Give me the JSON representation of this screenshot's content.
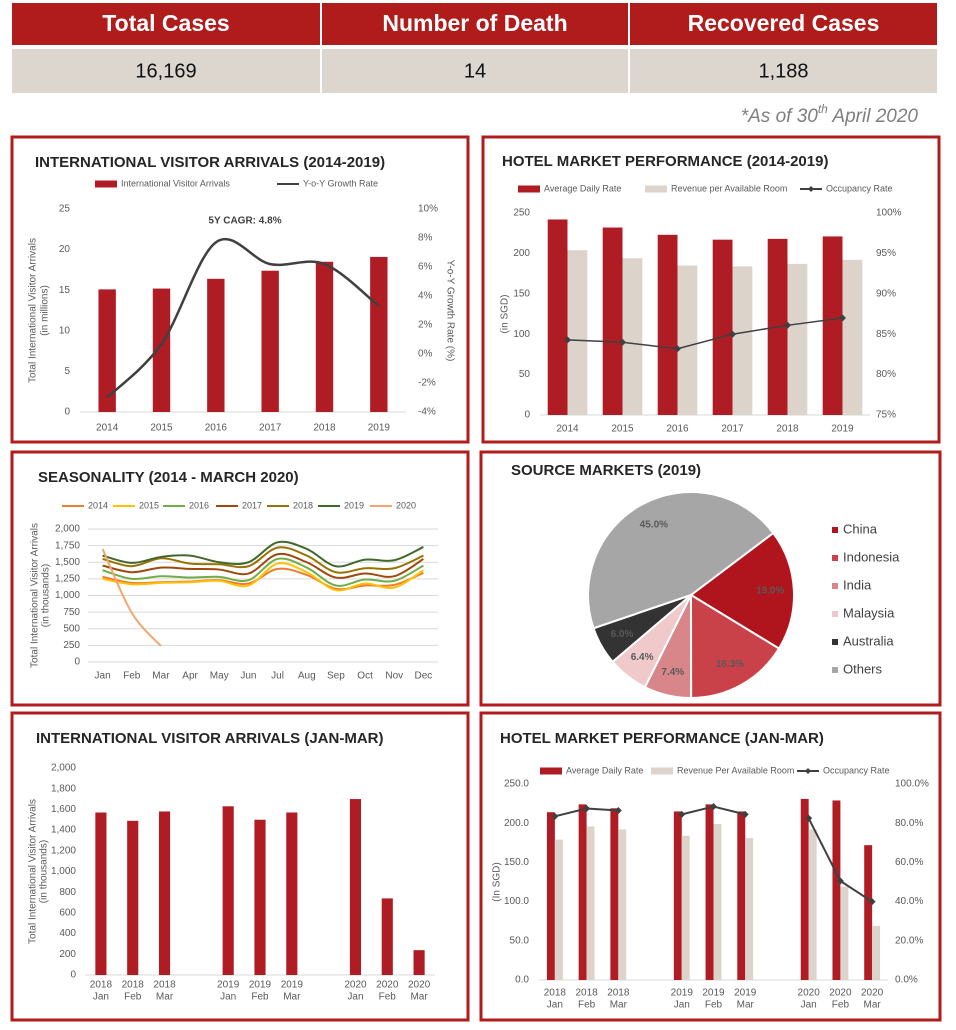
{
  "stats": {
    "headers": [
      "Total Cases",
      "Number of Death",
      "Recovered Cases"
    ],
    "values": [
      "16,169",
      "14",
      "1,188"
    ]
  },
  "note": {
    "prefix": "*As of 30",
    "sup": "th",
    "suffix": " April 2020"
  },
  "chart_data": [
    {
      "type": "bar",
      "title": "INTERNATIONAL VISITOR ARRIVALS (2014-2019)",
      "categories": [
        "2014",
        "2015",
        "2016",
        "2017",
        "2018",
        "2019"
      ],
      "series": [
        {
          "name": "International Visitor Arrivals",
          "type": "bar",
          "color": "#b01c24",
          "values": [
            15.1,
            15.2,
            16.4,
            17.4,
            18.5,
            19.1
          ]
        },
        {
          "name": "Y-o-Y Growth Rate",
          "type": "line",
          "axis": "y2",
          "color": "#404040",
          "values": [
            -3.0,
            0.7,
            7.7,
            6.2,
            6.2,
            3.3
          ]
        }
      ],
      "ylim": [
        0,
        25
      ],
      "yticks": [
        0,
        5,
        10,
        15,
        20,
        25
      ],
      "y2lim": [
        -4,
        10
      ],
      "y2ticks": [
        {
          "value": -4,
          "label": "-4%"
        },
        {
          "value": -2,
          "label": "-2%"
        },
        {
          "value": 0,
          "label": "0%"
        },
        {
          "value": 2,
          "label": "2%"
        },
        {
          "value": 4,
          "label": "4%"
        },
        {
          "value": 6,
          "label": "6%"
        },
        {
          "value": 8,
          "label": "8%"
        },
        {
          "value": 10,
          "label": "10%"
        }
      ],
      "ylabel": [
        "Total International Visitor Arrivals",
        "(in millions)"
      ],
      "y2label": "Y-o-Y Growth Rate (%)",
      "annotation": "5Y CAGR: 4.8%",
      "smooth": true,
      "grid": false
    },
    {
      "type": "bar",
      "title": "HOTEL MARKET PERFORMANCE (2014-2019)",
      "categories": [
        "2014",
        "2015",
        "2016",
        "2017",
        "2018",
        "2019"
      ],
      "series": [
        {
          "name": "Average Daily Rate",
          "type": "bar",
          "color": "#b01c24",
          "values": [
            242,
            232,
            223,
            217,
            218,
            221
          ]
        },
        {
          "name": "Revenue per Available Room",
          "type": "bar",
          "color": "#dcd3ca",
          "values": [
            204,
            194,
            185,
            184,
            187,
            192
          ]
        },
        {
          "name": "Occupancy Rate",
          "type": "line",
          "axis": "y2",
          "color": "#404040",
          "marker": "diamond",
          "values": [
            84.3,
            84.0,
            83.2,
            85.0,
            86.1,
            87.0
          ]
        }
      ],
      "ylim": [
        0,
        250
      ],
      "yticks": [
        0,
        50,
        100,
        150,
        200,
        250
      ],
      "y2lim": [
        75,
        100
      ],
      "y2ticks": [
        {
          "value": 75,
          "label": "75%"
        },
        {
          "value": 80,
          "label": "80%"
        },
        {
          "value": 85,
          "label": "85%"
        },
        {
          "value": 90,
          "label": "90%"
        },
        {
          "value": 95,
          "label": "95%"
        },
        {
          "value": 100,
          "label": "100%"
        }
      ],
      "ylabel": "(in SGD)",
      "smooth": false,
      "grid": false
    },
    {
      "type": "line",
      "title": "SEASONALITY (2014 - MARCH 2020)",
      "categories": [
        "Jan",
        "Feb",
        "Mar",
        "Apr",
        "May",
        "Jun",
        "Jul",
        "Aug",
        "Sep",
        "Oct",
        "Nov",
        "Dec"
      ],
      "series": [
        {
          "name": "2014",
          "color": "#ed7d31",
          "values": [
            1280,
            1190,
            1200,
            1210,
            1230,
            1180,
            1400,
            1310,
            1100,
            1150,
            1160,
            1340
          ]
        },
        {
          "name": "2015",
          "color": "#ffc000",
          "values": [
            1250,
            1170,
            1190,
            1200,
            1220,
            1150,
            1480,
            1350,
            1080,
            1180,
            1120,
            1380
          ]
        },
        {
          "name": "2016",
          "color": "#70ad47",
          "values": [
            1380,
            1250,
            1290,
            1270,
            1280,
            1230,
            1550,
            1420,
            1150,
            1240,
            1220,
            1450
          ]
        },
        {
          "name": "2017",
          "color": "#9e480e",
          "values": [
            1450,
            1350,
            1420,
            1400,
            1390,
            1330,
            1620,
            1500,
            1270,
            1330,
            1290,
            1550
          ]
        },
        {
          "name": "2018",
          "color": "#997300",
          "values": [
            1550,
            1440,
            1560,
            1480,
            1470,
            1440,
            1720,
            1600,
            1350,
            1410,
            1410,
            1600
          ]
        },
        {
          "name": "2019",
          "color": "#43682b",
          "values": [
            1600,
            1490,
            1580,
            1600,
            1500,
            1500,
            1800,
            1700,
            1440,
            1540,
            1530,
            1730
          ]
        },
        {
          "name": "2020",
          "color": "#f4a46c",
          "values": [
            1700,
            740,
            240,
            null,
            null,
            null,
            null,
            null,
            null,
            null,
            null,
            null
          ]
        }
      ],
      "ylim": [
        0,
        2000
      ],
      "yticks": [
        0,
        250,
        500,
        750,
        {
          "value": 1000,
          "label": "1,000"
        },
        {
          "value": 1250,
          "label": "1,250"
        },
        {
          "value": 1500,
          "label": "1,500"
        },
        {
          "value": 1750,
          "label": "1,750"
        },
        {
          "value": 2000,
          "label": "2,000"
        }
      ],
      "ylabel": [
        "Total International Visitor Arrivals",
        "(in thousands)"
      ],
      "smooth": true,
      "grid": true
    },
    {
      "type": "pie",
      "title": "SOURCE MARKETS (2019)",
      "categories": [
        "China",
        "Indonesia",
        "India",
        "Malaysia",
        "Australia",
        "Others"
      ],
      "values": [
        19.0,
        16.3,
        7.4,
        6.4,
        6.0,
        45.0
      ],
      "value_labels": [
        "19.0%",
        "16.3%",
        "7.4%",
        "6.4%",
        "6.0%",
        "45.0%"
      ],
      "colors": [
        "#b0151e",
        "#c9424a",
        "#d9868a",
        "#f0c9cb",
        "#333333",
        "#a6a6a6"
      ],
      "value_label_colors": [
        "#ffffff",
        "#ffffff",
        "#333333",
        "#333333",
        "#ffffff",
        "#ffffff"
      ]
    },
    {
      "type": "bar",
      "title": "INTERNATIONAL VISITOR ARRIVALS (JAN-MAR)",
      "categories": [
        [
          "2018",
          "Jan"
        ],
        [
          "2018",
          "Feb"
        ],
        [
          "2018",
          "Mar"
        ],
        null,
        [
          "2019",
          "Jan"
        ],
        [
          "2019",
          "Feb"
        ],
        [
          "2019",
          "Mar"
        ],
        null,
        [
          "2020",
          "Jan"
        ],
        [
          "2020",
          "Feb"
        ],
        [
          "2020",
          "Mar"
        ]
      ],
      "values": [
        1570,
        1490,
        1580,
        null,
        1630,
        1500,
        1570,
        null,
        1700,
        740,
        240
      ],
      "color": "#b01c24",
      "ylim": [
        0,
        2000
      ],
      "yticks": [
        0,
        200,
        400,
        600,
        800,
        {
          "value": 1000,
          "label": "1,000"
        },
        {
          "value": 1200,
          "label": "1,200"
        },
        {
          "value": 1400,
          "label": "1,400"
        },
        {
          "value": 1600,
          "label": "1,600"
        },
        {
          "value": 1800,
          "label": "1,800"
        },
        {
          "value": 2000,
          "label": "2,000"
        }
      ],
      "ylabel": [
        "Total International Visitor Arrivals",
        "(in thousands)"
      ],
      "grid": false
    },
    {
      "type": "bar",
      "title": "HOTEL MARKET PERFORMANCE (JAN-MAR)",
      "categories": [
        [
          "2018",
          "Jan"
        ],
        [
          "2018",
          "Feb"
        ],
        [
          "2018",
          "Mar"
        ],
        null,
        [
          "2019",
          "Jan"
        ],
        [
          "2019",
          "Feb"
        ],
        [
          "2019",
          "Mar"
        ],
        null,
        [
          "2020",
          "Jan"
        ],
        [
          "2020",
          "Feb"
        ],
        [
          "2020",
          "Mar"
        ]
      ],
      "series": [
        {
          "name": "Average Daily Rate",
          "type": "bar",
          "color": "#b01c24",
          "values": [
            214,
            224,
            219,
            null,
            215,
            224,
            215,
            null,
            231,
            229,
            172
          ]
        },
        {
          "name": "Revenue Per Available Room",
          "type": "bar",
          "color": "#dcd3ca",
          "values": [
            179,
            196,
            192,
            null,
            184,
            199,
            181,
            null,
            192,
            119,
            69
          ]
        },
        {
          "name": "Occupancy Rate",
          "type": "line",
          "axis": "y2",
          "color": "#404040",
          "marker": "diamond",
          "values": [
            83.5,
            87.5,
            86.5,
            null,
            84.5,
            88.5,
            84.5,
            null,
            82.5,
            50.5,
            40.0
          ]
        }
      ],
      "ylim": [
        0,
        250
      ],
      "yticks": [
        {
          "value": 0,
          "label": "0.0"
        },
        {
          "value": 50,
          "label": "50.0"
        },
        {
          "value": 100,
          "label": "100.0"
        },
        {
          "value": 150,
          "label": "150.0"
        },
        {
          "value": 200,
          "label": "200.0"
        },
        {
          "value": 250,
          "label": "250.0"
        }
      ],
      "y2lim": [
        0,
        100
      ],
      "y2ticks": [
        {
          "value": 0,
          "label": "0.0%"
        },
        {
          "value": 20,
          "label": "20.0%"
        },
        {
          "value": 40,
          "label": "40.0%"
        },
        {
          "value": 60,
          "label": "60.0%"
        },
        {
          "value": 80,
          "label": "80.0%"
        },
        {
          "value": 100,
          "label": "100.0%"
        }
      ],
      "ylabel": "(In SGD)",
      "smooth": false,
      "grid": false
    }
  ]
}
